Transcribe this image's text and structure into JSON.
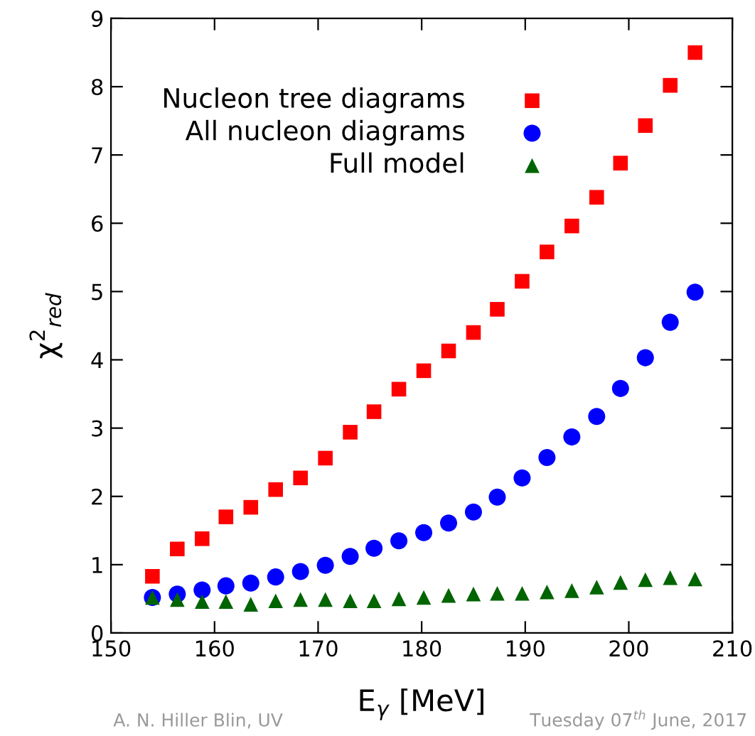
{
  "chart_data": {
    "type": "scatter",
    "xlabel": "E$_{γ}$ [MeV]",
    "ylabel": "χ$^{2}$$_{red}$",
    "x": [
      154.0,
      156.4,
      158.8,
      161.1,
      163.5,
      165.9,
      168.3,
      170.7,
      173.1,
      175.4,
      177.8,
      180.2,
      182.6,
      185.0,
      187.3,
      189.7,
      192.1,
      194.5,
      196.9,
      199.2,
      201.6,
      204.0,
      206.4
    ],
    "series": [
      {
        "name": "Nucleon tree diagrams",
        "color": "#ff0000",
        "marker": "square",
        "values": [
          0.83,
          1.23,
          1.38,
          1.7,
          1.84,
          2.1,
          2.27,
          2.56,
          2.94,
          3.24,
          3.57,
          3.84,
          4.13,
          4.4,
          4.74,
          5.15,
          5.58,
          5.96,
          6.38,
          6.88,
          7.43,
          8.02,
          8.5
        ]
      },
      {
        "name": "All nucleon diagrams",
        "color": "#0000ff",
        "marker": "circle",
        "values": [
          0.52,
          0.57,
          0.63,
          0.69,
          0.73,
          0.82,
          0.9,
          0.99,
          1.12,
          1.24,
          1.35,
          1.47,
          1.61,
          1.77,
          1.99,
          2.27,
          2.57,
          2.87,
          3.17,
          3.58,
          4.03,
          4.55,
          4.99
        ]
      },
      {
        "name": "Full model",
        "color": "#006400",
        "marker": "triangle",
        "values": [
          0.52,
          0.49,
          0.46,
          0.46,
          0.42,
          0.47,
          0.49,
          0.49,
          0.47,
          0.47,
          0.5,
          0.52,
          0.55,
          0.57,
          0.58,
          0.58,
          0.6,
          0.62,
          0.67,
          0.74,
          0.78,
          0.81,
          0.79
        ]
      }
    ],
    "xlim": [
      150,
      210
    ],
    "xticks": [
      150,
      160,
      170,
      180,
      190,
      200,
      210
    ],
    "ylim": [
      0,
      9
    ],
    "yticks": [
      0,
      1,
      2,
      3,
      4,
      5,
      6,
      7,
      8,
      9
    ],
    "grid": false,
    "legend": "top left",
    "annotations": [
      "A. N. Hiller Blin, UV",
      "Tuesday 07$^{th}$ June, 2017"
    ]
  }
}
